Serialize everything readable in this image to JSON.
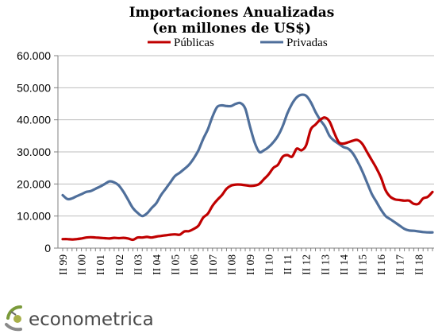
{
  "chart_data": {
    "type": "line",
    "title": "Importaciones  Anualizadas",
    "subtitle": "(en millones de US$)",
    "xlabel": "",
    "ylabel": "",
    "ylim": [
      0,
      60000
    ],
    "yticks": [
      0,
      10000,
      20000,
      30000,
      40000,
      50000,
      60000
    ],
    "ytick_labels": [
      "0",
      "10.000",
      "20.000",
      "30.000",
      "40.000",
      "50.000",
      "60.000"
    ],
    "x_labels": [
      "II 99",
      "II 00",
      "II 01",
      "II 02",
      "II 03",
      "II 04",
      "II 05",
      "II 06",
      "II 07",
      "II 08",
      "II 09",
      "II 10",
      "II 11",
      "II 12",
      "II 13",
      "II 14",
      "II 15",
      "II 16",
      "II 17",
      "II 18"
    ],
    "x_start": "1999 Q2",
    "grid": true,
    "legend_position": "top",
    "series": [
      {
        "name": "Públicas",
        "color": "#c00000",
        "values": [
          2800,
          2800,
          2700,
          2800,
          3000,
          3300,
          3400,
          3300,
          3200,
          3100,
          3000,
          3200,
          3100,
          3200,
          3000,
          2600,
          3300,
          3300,
          3500,
          3300,
          3600,
          3800,
          4000,
          4200,
          4300,
          4200,
          5200,
          5300,
          6000,
          7000,
          9500,
          10700,
          13200,
          15000,
          16500,
          18500,
          19500,
          19800,
          19800,
          19600,
          19400,
          19500,
          20000,
          21500,
          23000,
          25000,
          26000,
          28500,
          29000,
          28500,
          31000,
          30500,
          32000,
          37000,
          38500,
          40000,
          40700,
          39500,
          36000,
          33000,
          32600,
          33000,
          33500,
          33700,
          32500,
          30000,
          27500,
          25000,
          22000,
          18000,
          16000,
          15200,
          15000,
          14800,
          14800,
          13800,
          13800,
          15500,
          16000,
          17500
        ]
      },
      {
        "name": "Privadas",
        "color": "#4f6f9b",
        "values": [
          16500,
          15300,
          15500,
          16200,
          16800,
          17500,
          17800,
          18500,
          19200,
          20000,
          20800,
          20500,
          19500,
          17500,
          15000,
          12500,
          11000,
          10000,
          10800,
          12500,
          14000,
          16500,
          18500,
          20500,
          22500,
          23500,
          24700,
          26000,
          28000,
          30500,
          34000,
          37000,
          41000,
          44000,
          44500,
          44300,
          44300,
          45000,
          45200,
          43500,
          38000,
          33000,
          30000,
          30500,
          31500,
          33000,
          35000,
          38000,
          42000,
          45000,
          47000,
          47800,
          47500,
          45500,
          42500,
          40000,
          38000,
          35000,
          33500,
          32500,
          31500,
          31000,
          29500,
          27000,
          24000,
          20500,
          17000,
          14500,
          12000,
          10000,
          9000,
          8000,
          7000,
          6000,
          5500,
          5400,
          5200,
          5000,
          4900,
          4900
        ]
      }
    ]
  },
  "branding": {
    "logo_text": "econometrica"
  }
}
